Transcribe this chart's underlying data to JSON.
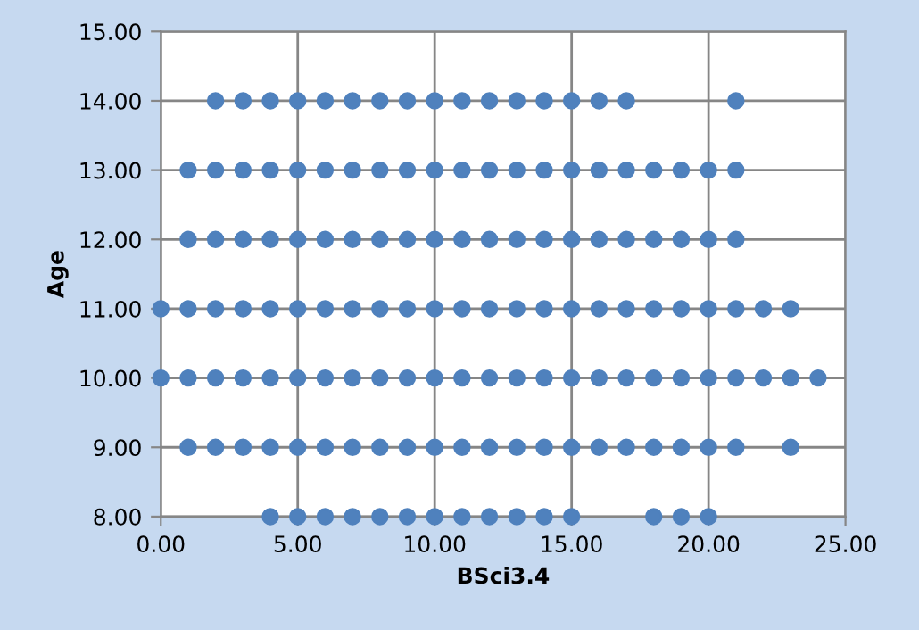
{
  "chart_data": {
    "type": "scatter",
    "xlabel": "BSci3.4",
    "ylabel": "Age",
    "x": [
      2,
      3,
      4,
      5,
      6,
      7,
      8,
      9,
      10,
      11,
      12,
      13,
      14,
      15,
      16,
      17,
      21,
      1,
      2,
      3,
      4,
      5,
      6,
      7,
      8,
      9,
      10,
      11,
      12,
      13,
      14,
      15,
      16,
      17,
      18,
      19,
      20,
      21,
      1,
      2,
      3,
      4,
      5,
      6,
      7,
      8,
      9,
      10,
      11,
      12,
      13,
      14,
      15,
      16,
      17,
      18,
      19,
      20,
      21,
      0,
      1,
      2,
      3,
      4,
      5,
      6,
      7,
      8,
      9,
      10,
      11,
      12,
      13,
      14,
      15,
      16,
      17,
      18,
      19,
      20,
      21,
      22,
      23,
      0,
      1,
      2,
      3,
      4,
      5,
      6,
      7,
      8,
      9,
      10,
      11,
      12,
      13,
      14,
      15,
      16,
      17,
      18,
      19,
      20,
      21,
      22,
      23,
      24,
      1,
      2,
      3,
      4,
      5,
      6,
      7,
      8,
      9,
      10,
      11,
      12,
      13,
      14,
      15,
      16,
      17,
      18,
      19,
      20,
      21,
      23,
      4,
      5,
      6,
      7,
      8,
      9,
      10,
      11,
      12,
      13,
      14,
      15,
      18,
      19,
      20
    ],
    "series": [
      {
        "color": "#4f81bd",
        "values": [
          14,
          14,
          14,
          14,
          14,
          14,
          14,
          14,
          14,
          14,
          14,
          14,
          14,
          14,
          14,
          14,
          14,
          13,
          13,
          13,
          13,
          13,
          13,
          13,
          13,
          13,
          13,
          13,
          13,
          13,
          13,
          13,
          13,
          13,
          13,
          13,
          13,
          13,
          12,
          12,
          12,
          12,
          12,
          12,
          12,
          12,
          12,
          12,
          12,
          12,
          12,
          12,
          12,
          12,
          12,
          12,
          12,
          12,
          12,
          11,
          11,
          11,
          11,
          11,
          11,
          11,
          11,
          11,
          11,
          11,
          11,
          11,
          11,
          11,
          11,
          11,
          11,
          11,
          11,
          11,
          11,
          11,
          11,
          10,
          10,
          10,
          10,
          10,
          10,
          10,
          10,
          10,
          10,
          10,
          10,
          10,
          10,
          10,
          10,
          10,
          10,
          10,
          10,
          10,
          10,
          10,
          10,
          10,
          9,
          9,
          9,
          9,
          9,
          9,
          9,
          9,
          9,
          9,
          9,
          9,
          9,
          9,
          9,
          9,
          9,
          9,
          9,
          9,
          9,
          9,
          8,
          8,
          8,
          8,
          8,
          8,
          8,
          8,
          8,
          8,
          8,
          8,
          8,
          8,
          8
        ]
      }
    ],
    "xlim": [
      0,
      25
    ],
    "ylim": [
      8,
      15
    ],
    "xticks": [
      {
        "value": 0,
        "label": "0.00"
      },
      {
        "value": 5,
        "label": "5.00"
      },
      {
        "value": 10,
        "label": "10.00"
      },
      {
        "value": 15,
        "label": "15.00"
      },
      {
        "value": 20,
        "label": "20.00"
      },
      {
        "value": 25,
        "label": "25.00"
      }
    ],
    "yticks": [
      {
        "value": 8,
        "label": "8.00"
      },
      {
        "value": 9,
        "label": "9.00"
      },
      {
        "value": 10,
        "label": "10.00"
      },
      {
        "value": 11,
        "label": "11.00"
      },
      {
        "value": 12,
        "label": "12.00"
      },
      {
        "value": 13,
        "label": "13.00"
      },
      {
        "value": 14,
        "label": "14.00"
      },
      {
        "value": 15,
        "label": "15.00"
      }
    ],
    "grid": true,
    "marker": "circle",
    "legend": false
  }
}
